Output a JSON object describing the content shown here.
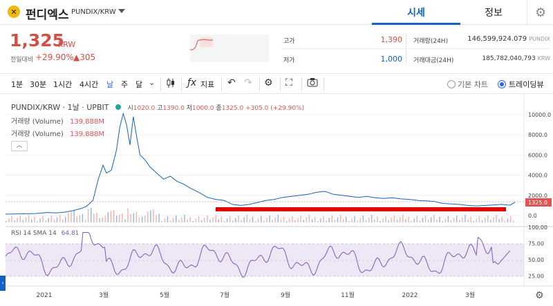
{
  "header": {
    "coin_name": "펀디엑스",
    "pair": "PUNDIX/KRW",
    "tabs": [
      "시세",
      "정보"
    ]
  },
  "price": {
    "current": "1,325",
    "unit": "KRW",
    "prev_label": "전일대비",
    "change_pct": "+29.90%",
    "change_abs": "▲305"
  },
  "stats": {
    "high_label": "고가",
    "high": "1,390",
    "low_label": "저가",
    "low": "1,000",
    "volume_label": "거래량(24H)",
    "volume": "146,599,924.079",
    "volume_unit": "PUNDIX",
    "amount_label": "거래대금(24H)",
    "amount": "185,782,040,793",
    "amount_unit": "KRW"
  },
  "toolbar": {
    "intervals": [
      "1분",
      "30분",
      "1시간",
      "4시간",
      "날",
      "주",
      "달"
    ],
    "indicator_label": "지표",
    "basic_chart": "기본 차트",
    "tradingview": "트레이딩뷰"
  },
  "chart": {
    "legend_title": "PUNDIX/KRW · 1날 · UPBIT",
    "ohlc": {
      "o_label": "시",
      "o": "1020.0",
      "h_label": "고",
      "h": "1390.0",
      "l_label": "저",
      "l": "1000.0",
      "c_label": "종",
      "c": "1325.0",
      "change": "+305.0 (+29.90%)"
    },
    "volume_legend_label": "거래량 (Volume)",
    "volume_legend_value": "139.888M",
    "rsi_label": "RSI 14 SMA 14",
    "rsi_value": "64.81",
    "price_ticks": [
      "10000.0",
      "8000.0",
      "6000.0",
      "4000.0",
      "2000.0",
      "0.0"
    ],
    "last_price_tag": "1325.0",
    "rsi_ticks": [
      "100.00",
      "75.00",
      "50.00",
      "25.00"
    ],
    "time_ticks": [
      "2021",
      "3월",
      "5월",
      "7월",
      "9월",
      "11월",
      "2022",
      "3월"
    ]
  },
  "colors": {
    "up": "#e05353",
    "down": "#1261c4",
    "accent": "#2962ff",
    "rsi": "#7e57c2",
    "annotation": "#e00000"
  },
  "chart_data": {
    "type": "line",
    "price_series": [
      [
        0,
        140
      ],
      [
        5,
        150
      ],
      [
        10,
        170
      ],
      [
        18,
        200
      ],
      [
        22,
        260
      ],
      [
        25,
        300
      ],
      [
        30,
        250
      ],
      [
        35,
        320
      ],
      [
        40,
        480
      ],
      [
        45,
        700
      ],
      [
        48,
        900
      ],
      [
        52,
        1500
      ],
      [
        55,
        3500
      ],
      [
        58,
        5000
      ],
      [
        60,
        4200
      ],
      [
        63,
        4500
      ],
      [
        66,
        6500
      ],
      [
        68,
        8800
      ],
      [
        70,
        10100
      ],
      [
        72,
        9000
      ],
      [
        74,
        7000
      ],
      [
        76,
        9800
      ],
      [
        78,
        7800
      ],
      [
        80,
        6000
      ],
      [
        83,
        5500
      ],
      [
        86,
        4800
      ],
      [
        90,
        4200
      ],
      [
        94,
        3600
      ],
      [
        98,
        3900
      ],
      [
        102,
        3400
      ],
      [
        106,
        3100
      ],
      [
        110,
        2700
      ],
      [
        115,
        2300
      ],
      [
        120,
        1800
      ],
      [
        125,
        1600
      ],
      [
        130,
        1500
      ],
      [
        135,
        1100
      ],
      [
        140,
        1000
      ],
      [
        145,
        1100
      ],
      [
        150,
        1300
      ],
      [
        155,
        1500
      ],
      [
        160,
        1600
      ],
      [
        165,
        1800
      ],
      [
        170,
        1900
      ],
      [
        175,
        2000
      ],
      [
        180,
        2100
      ],
      [
        185,
        2300
      ],
      [
        190,
        2400
      ],
      [
        195,
        2100
      ],
      [
        200,
        2000
      ],
      [
        205,
        1900
      ],
      [
        210,
        1800
      ],
      [
        215,
        1900
      ],
      [
        220,
        1750
      ],
      [
        225,
        1700
      ],
      [
        230,
        1750
      ],
      [
        235,
        1650
      ],
      [
        240,
        1600
      ],
      [
        245,
        1500
      ],
      [
        250,
        1450
      ],
      [
        255,
        1400
      ],
      [
        260,
        1200
      ],
      [
        265,
        1150
      ],
      [
        270,
        1100
      ],
      [
        275,
        1000
      ],
      [
        280,
        950
      ],
      [
        285,
        1000
      ],
      [
        290,
        1050
      ],
      [
        295,
        1100
      ],
      [
        300,
        1020
      ],
      [
        303,
        1325
      ]
    ]
  }
}
